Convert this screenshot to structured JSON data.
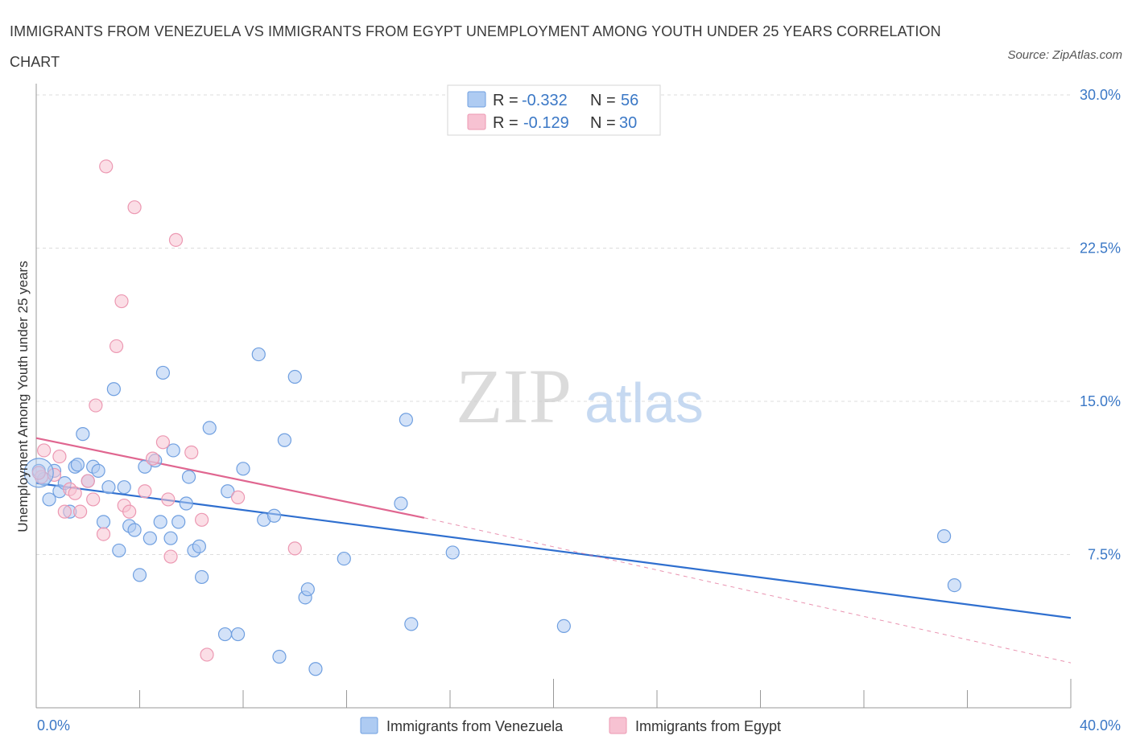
{
  "title": "IMMIGRANTS FROM VENEZUELA VS IMMIGRANTS FROM EGYPT UNEMPLOYMENT AMONG YOUTH UNDER 25 YEARS CORRELATION CHART",
  "source": "Source: ZipAtlas.com",
  "watermark": {
    "zip": "ZIP",
    "atlas": "atlas"
  },
  "colors": {
    "venezuela_fill": "#aecbf2",
    "venezuela_stroke": "#6f9fe0",
    "venezuela_line": "#2f6fcf",
    "egypt_fill": "#f7c2d2",
    "egypt_stroke": "#ec98b2",
    "egypt_line": "#e06690",
    "tick_text": "#3b78c6",
    "grid": "#dddddd"
  },
  "stats": {
    "venezuela": {
      "r_label": "R = ",
      "r_value": "-0.332",
      "n_label": "N = ",
      "n_value": "56"
    },
    "egypt": {
      "r_label": "R = ",
      "r_value": "-0.129",
      "n_label": "N = ",
      "n_value": "30"
    }
  },
  "chart_data": {
    "type": "scatter",
    "title": "IMMIGRANTS FROM VENEZUELA VS IMMIGRANTS FROM EGYPT UNEMPLOYMENT AMONG YOUTH UNDER 25 YEARS CORRELATION CHART",
    "xlabel": "",
    "ylabel": "Unemployment Among Youth under 25 years",
    "xlim": [
      0,
      40
    ],
    "ylim": [
      0,
      30
    ],
    "x_tick_labels": [
      "0.0%",
      "40.0%"
    ],
    "y_ticks": [
      7.5,
      15.0,
      22.5,
      30.0
    ],
    "y_tick_labels": [
      "7.5%",
      "15.0%",
      "22.5%",
      "30.0%"
    ],
    "grid": true,
    "legend": "bottom-center",
    "series": [
      {
        "name": "Immigrants from Venezuela",
        "r": -0.332,
        "n": 56,
        "trend": {
          "x": [
            0,
            40
          ],
          "y": [
            11.0,
            4.4
          ],
          "dashed_to": null
        },
        "points": [
          [
            0.1,
            11.6
          ],
          [
            0.3,
            11.2
          ],
          [
            0.5,
            10.2
          ],
          [
            0.7,
            11.6
          ],
          [
            0.9,
            10.6
          ],
          [
            1.1,
            11.0
          ],
          [
            1.3,
            9.6
          ],
          [
            1.5,
            11.8
          ],
          [
            1.6,
            11.9
          ],
          [
            1.8,
            13.4
          ],
          [
            2.0,
            11.1
          ],
          [
            2.2,
            11.8
          ],
          [
            2.4,
            11.6
          ],
          [
            2.6,
            9.1
          ],
          [
            2.8,
            10.8
          ],
          [
            3.0,
            15.6
          ],
          [
            3.2,
            7.7
          ],
          [
            3.4,
            10.8
          ],
          [
            3.6,
            8.9
          ],
          [
            3.8,
            8.7
          ],
          [
            4.0,
            6.5
          ],
          [
            4.2,
            11.8
          ],
          [
            4.4,
            8.3
          ],
          [
            4.6,
            12.1
          ],
          [
            4.8,
            9.1
          ],
          [
            4.9,
            16.4
          ],
          [
            5.2,
            8.3
          ],
          [
            5.3,
            12.6
          ],
          [
            5.5,
            9.1
          ],
          [
            5.8,
            10.0
          ],
          [
            5.9,
            11.3
          ],
          [
            6.1,
            7.7
          ],
          [
            6.3,
            7.9
          ],
          [
            6.4,
            6.4
          ],
          [
            6.7,
            13.7
          ],
          [
            7.3,
            3.6
          ],
          [
            7.4,
            10.6
          ],
          [
            7.8,
            3.6
          ],
          [
            8.0,
            11.7
          ],
          [
            8.6,
            17.3
          ],
          [
            8.8,
            9.2
          ],
          [
            9.2,
            9.4
          ],
          [
            9.4,
            2.5
          ],
          [
            9.6,
            13.1
          ],
          [
            10.0,
            16.2
          ],
          [
            10.4,
            5.4
          ],
          [
            10.5,
            5.8
          ],
          [
            10.8,
            1.9
          ],
          [
            11.9,
            7.3
          ],
          [
            14.1,
            10.0
          ],
          [
            14.3,
            14.1
          ],
          [
            14.5,
            4.1
          ],
          [
            16.1,
            7.6
          ],
          [
            20.4,
            4.0
          ],
          [
            35.1,
            8.4
          ],
          [
            35.5,
            6.0
          ]
        ]
      },
      {
        "name": "Immigrants from Egypt",
        "r": -0.129,
        "n": 30,
        "trend": {
          "x": [
            0,
            15.0
          ],
          "y": [
            13.2,
            9.3
          ],
          "dashed_to": {
            "x": 40,
            "y": 2.2
          }
        },
        "points": [
          [
            0.2,
            11.3
          ],
          [
            0.3,
            12.6
          ],
          [
            0.7,
            11.4
          ],
          [
            0.9,
            12.3
          ],
          [
            1.1,
            9.6
          ],
          [
            1.3,
            10.7
          ],
          [
            1.5,
            10.5
          ],
          [
            1.7,
            9.6
          ],
          [
            2.0,
            11.1
          ],
          [
            2.2,
            10.2
          ],
          [
            2.3,
            14.8
          ],
          [
            2.6,
            8.5
          ],
          [
            2.7,
            26.5
          ],
          [
            3.1,
            17.7
          ],
          [
            3.3,
            19.9
          ],
          [
            3.4,
            9.9
          ],
          [
            3.6,
            9.6
          ],
          [
            3.8,
            24.5
          ],
          [
            4.2,
            10.6
          ],
          [
            4.5,
            12.2
          ],
          [
            4.9,
            13.0
          ],
          [
            5.1,
            10.2
          ],
          [
            5.2,
            7.4
          ],
          [
            5.4,
            22.9
          ],
          [
            6.0,
            12.5
          ],
          [
            6.4,
            9.2
          ],
          [
            6.6,
            2.6
          ],
          [
            7.8,
            10.3
          ],
          [
            10.0,
            7.8
          ],
          [
            0.1,
            11.5
          ]
        ]
      }
    ]
  }
}
